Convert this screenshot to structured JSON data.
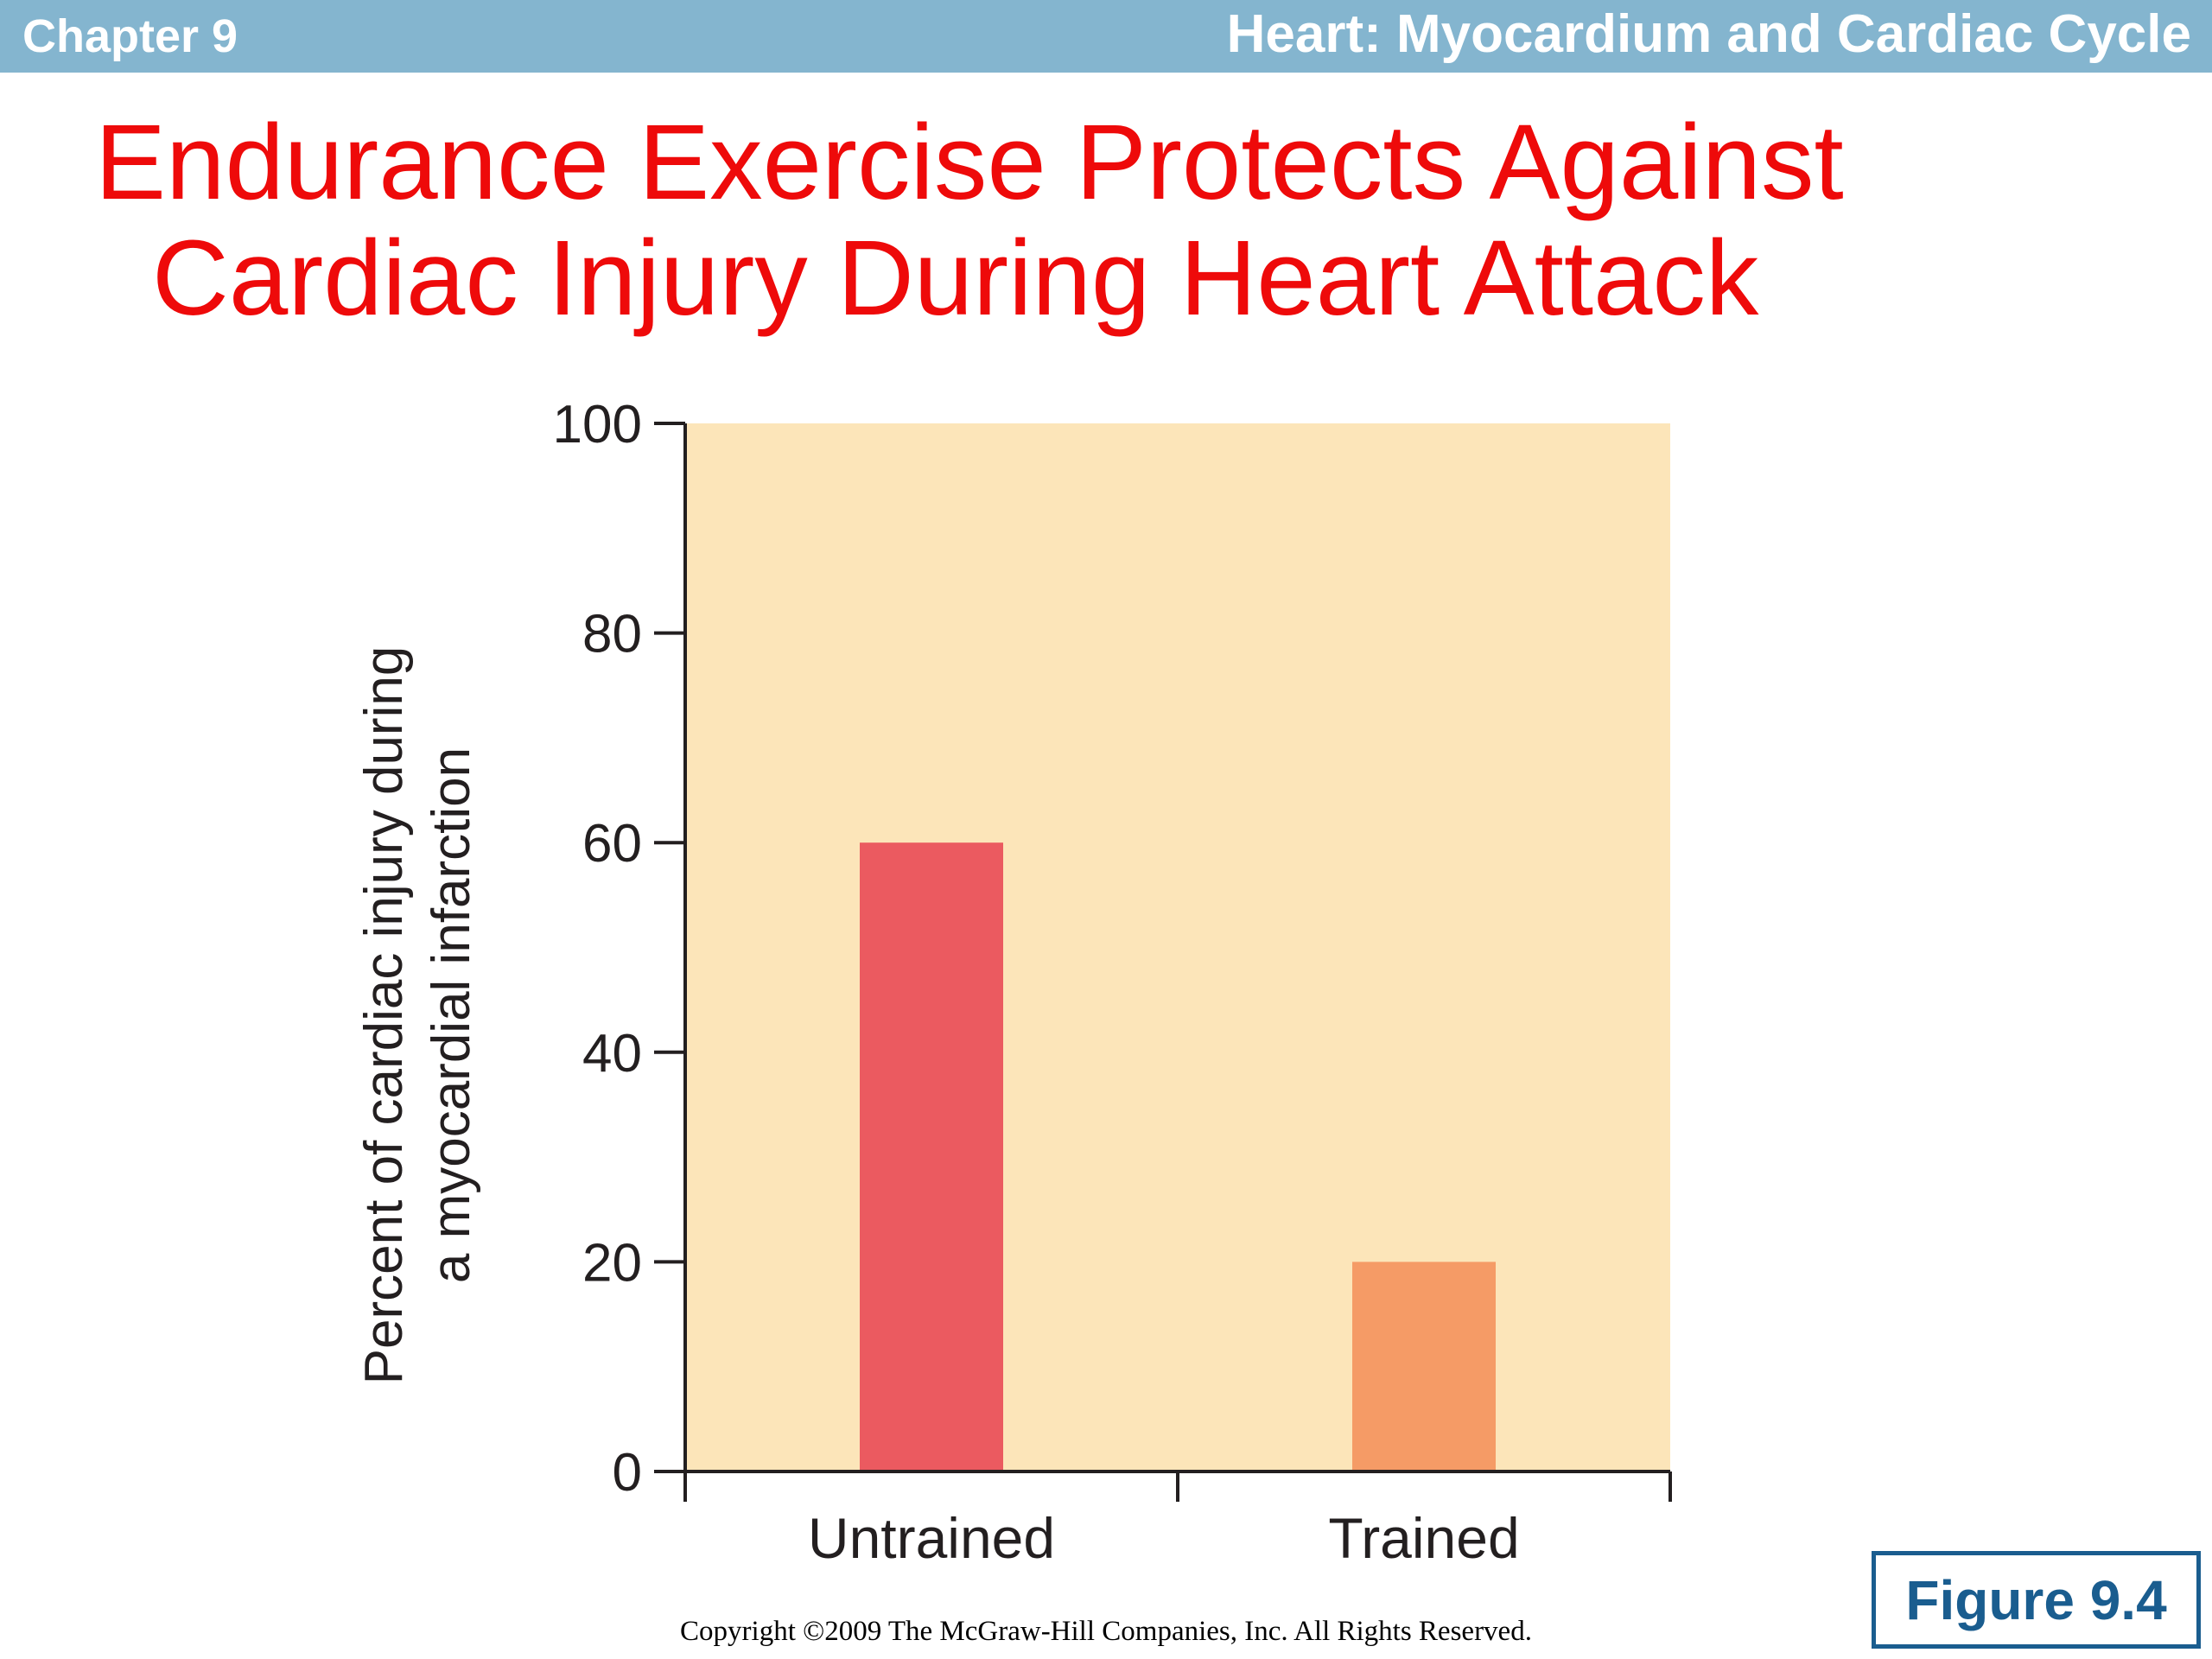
{
  "header": {
    "chapter": "Chapter 9",
    "title": "Heart: Myocardium and Cardiac Cycle"
  },
  "slide": {
    "title_line1": "Endurance Exercise Protects Against",
    "title_line2": "Cardiac Injury During Heart Attack"
  },
  "chart_data": {
    "type": "bar",
    "categories": [
      "Untrained",
      "Trained"
    ],
    "values": [
      60,
      20
    ],
    "ylabel_line1": "Percent of cardiac injury during",
    "ylabel_line2": "a myocardial infarction",
    "ylim": [
      0,
      100
    ],
    "yticks": [
      0,
      20,
      40,
      60,
      80,
      100
    ],
    "grid": false,
    "bar_colors": [
      "#eb5a60",
      "#f59b66"
    ],
    "plot_background": "#fce5b9"
  },
  "footer": {
    "copyright": "Copyright ©2009 The McGraw-Hill Companies, Inc. All Rights Reserved.",
    "figure_label": "Figure 9.4"
  }
}
